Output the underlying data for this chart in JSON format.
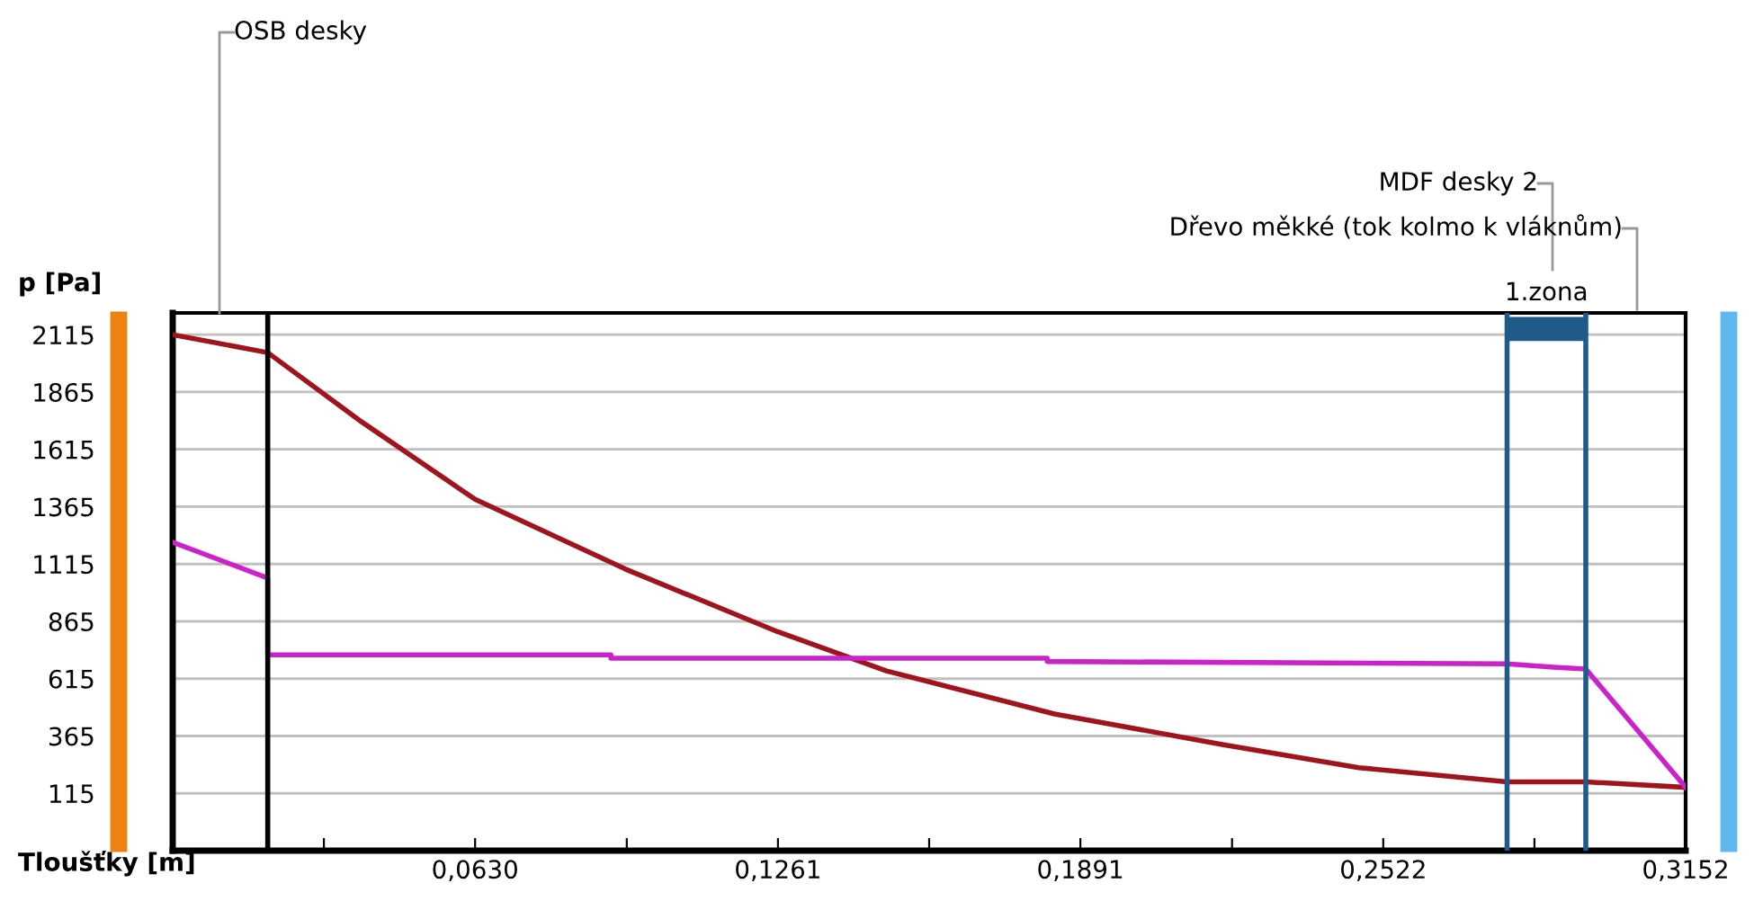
{
  "chart_data": {
    "type": "line",
    "xlabel": "Tloušťky [m]",
    "ylabel": "p [Pa]",
    "xlim": [
      0,
      0.3152
    ],
    "ylim": [
      -135,
      2210
    ],
    "xticks": [
      {
        "value": 0.0315,
        "label": null
      },
      {
        "value": 0.063,
        "label": "0,0630"
      },
      {
        "value": 0.0946,
        "label": null
      },
      {
        "value": 0.1261,
        "label": "0,1261"
      },
      {
        "value": 0.1576,
        "label": null
      },
      {
        "value": 0.1891,
        "label": "0,1891"
      },
      {
        "value": 0.2207,
        "label": null
      },
      {
        "value": 0.2522,
        "label": "0,2522"
      },
      {
        "value": 0.2837,
        "label": null
      },
      {
        "value": 0.3152,
        "label": "0,3152"
      }
    ],
    "yticks": [
      115,
      365,
      615,
      865,
      1115,
      1365,
      1615,
      1865,
      2115
    ],
    "grid": "y",
    "marker": "none",
    "line_style": "solid",
    "legend": false,
    "series": [
      {
        "color": "#a0141e",
        "x": [
          0,
          0.0198,
          0.0395,
          0.063,
          0.0943,
          0.126,
          0.1487,
          0.1837,
          0.2184,
          0.2471,
          0.278,
          0.2944,
          0.3152
        ],
        "values": [
          2115,
          2037,
          1733,
          1397,
          1093,
          820,
          649,
          461,
          329,
          227,
          165,
          165,
          141
        ]
      },
      {
        "color": "#cc22cc",
        "x": [
          0,
          0.0198,
          0.0198,
          0.0913,
          0.0913,
          0.1822,
          0.1822,
          0.278,
          0.2877,
          0.2944,
          0.3152
        ],
        "values": [
          1210,
          1054,
          719,
          719,
          704,
          704,
          690,
          680,
          665,
          657,
          141
        ]
      }
    ],
    "ref_lines": [
      {
        "axis": "x",
        "value": 0.0198,
        "color": "#000000"
      },
      {
        "axis": "x",
        "value": 0.278,
        "color": "#1f5a8a"
      },
      {
        "axis": "x",
        "value": 0.2944,
        "color": "#1f5a8a"
      }
    ],
    "bands": [
      {
        "axis": "x",
        "from": 0.278,
        "to": 0.2944,
        "label": "1.zona",
        "color": "#1f5a8a"
      }
    ],
    "annotations": [
      "OSB desky",
      "MDF desky 2",
      "Dřevo měkké (tok kolmo k vláknům)"
    ]
  }
}
